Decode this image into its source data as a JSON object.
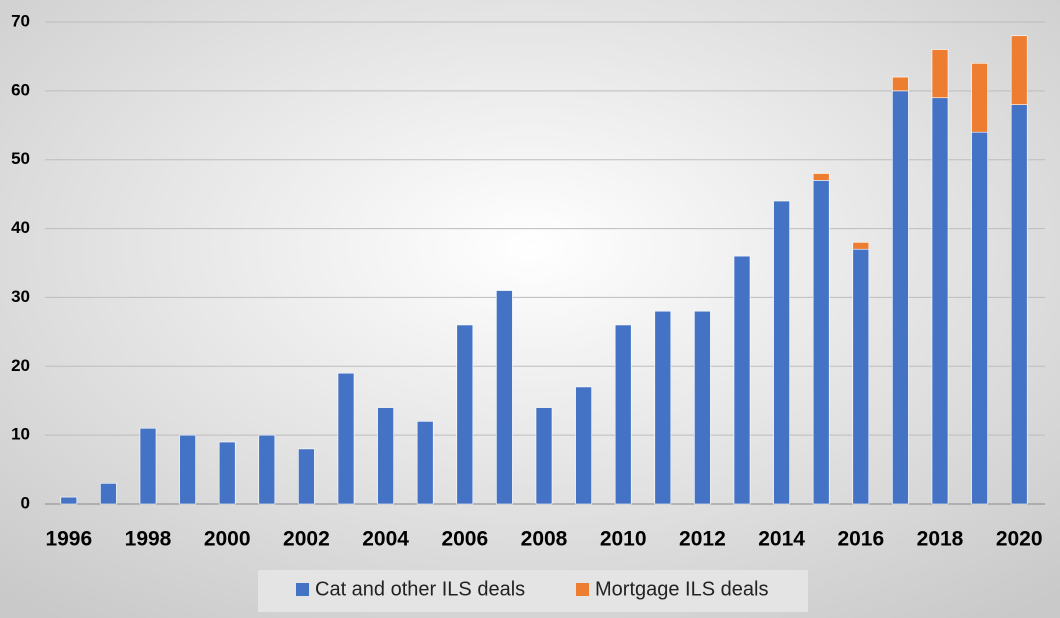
{
  "chart_data": {
    "type": "stacked_bar",
    "categories": [
      "1996",
      null,
      "1998",
      null,
      "2000",
      null,
      "2002",
      null,
      "2004",
      null,
      "2006",
      null,
      "2008",
      null,
      "2010",
      null,
      "2012",
      null,
      "2014",
      null,
      "2016",
      null,
      "2018",
      null,
      "2020"
    ],
    "series": [
      {
        "name": "Cat and other ILS deals",
        "color": "#4472c4",
        "values": [
          1,
          3,
          11,
          10,
          9,
          10,
          8,
          19,
          14,
          12,
          26,
          31,
          14,
          17,
          26,
          28,
          28,
          36,
          44,
          47,
          37,
          60,
          59,
          54,
          58
        ]
      },
      {
        "name": "Mortgage ILS deals",
        "color": "#ed7d31",
        "values": [
          0,
          0,
          0,
          0,
          0,
          0,
          0,
          0,
          0,
          0,
          0,
          0,
          0,
          0,
          0,
          0,
          0,
          0,
          0,
          1,
          1,
          2,
          7,
          10,
          10
        ]
      }
    ],
    "ylim": [
      0,
      70
    ],
    "yticks": [
      0,
      10,
      20,
      30,
      40,
      50,
      60,
      70
    ],
    "grid": true,
    "legend": "bottom"
  }
}
